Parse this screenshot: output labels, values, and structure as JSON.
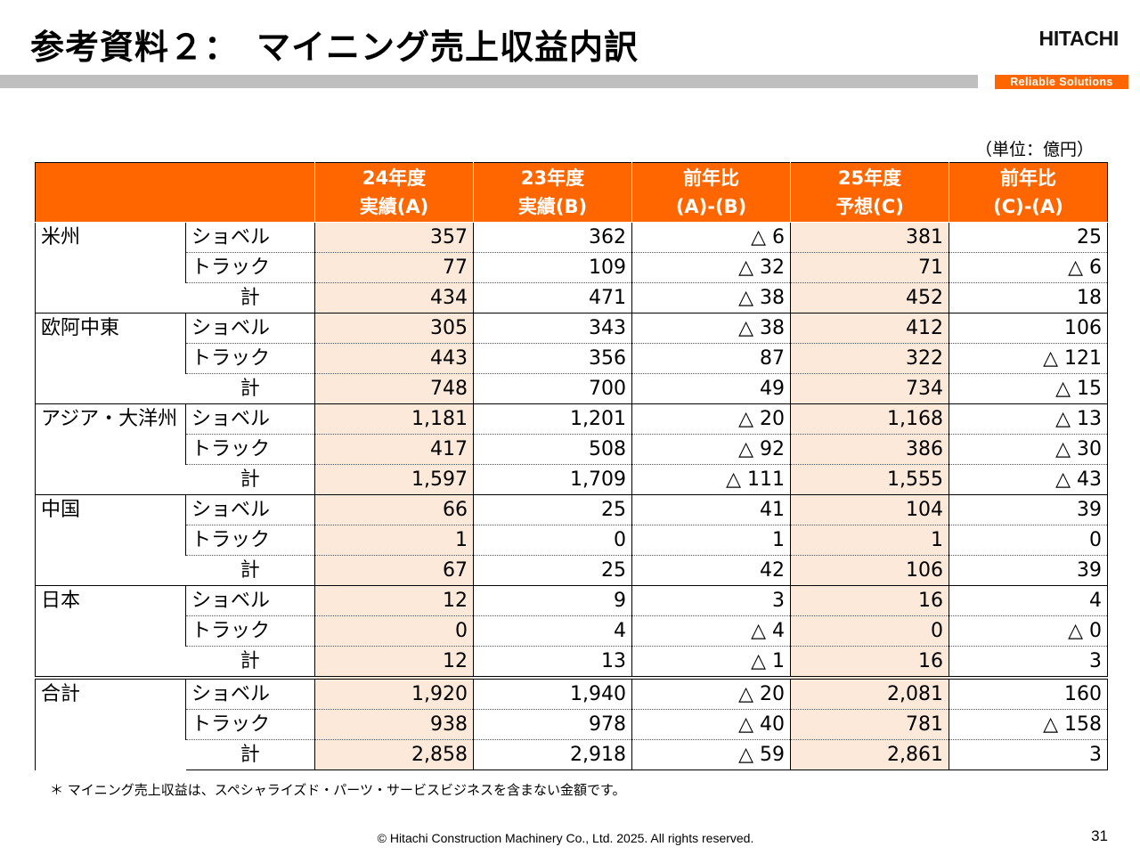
{
  "title": "参考資料２：　マイニング売上収益内訳",
  "logo": "HITACHI",
  "tagline": "Reliable Solutions",
  "unit": "（単位：億円）",
  "headers": [
    {
      "line1": "24年度",
      "line2": "実績(A)"
    },
    {
      "line1": "23年度",
      "line2": "実績(B)"
    },
    {
      "line1": "前年比",
      "line2": "(A)-(B)"
    },
    {
      "line1": "25年度",
      "line2": "予想(C)"
    },
    {
      "line1": "前年比",
      "line2": "(C)-(A)"
    }
  ],
  "row_labels": {
    "shovel": "ショベル",
    "truck": "トラック",
    "total": "計"
  },
  "regions": [
    {
      "name": "米州",
      "rows": [
        [
          "357",
          "362",
          "△ 6",
          "381",
          "25"
        ],
        [
          "77",
          "109",
          "△ 32",
          "71",
          "△ 6"
        ],
        [
          "434",
          "471",
          "△ 38",
          "452",
          "18"
        ]
      ]
    },
    {
      "name": "欧阿中東",
      "rows": [
        [
          "305",
          "343",
          "△ 38",
          "412",
          "106"
        ],
        [
          "443",
          "356",
          "87",
          "322",
          "△ 121"
        ],
        [
          "748",
          "700",
          "49",
          "734",
          "△ 15"
        ]
      ]
    },
    {
      "name": "アジア・大洋州",
      "rows": [
        [
          "1,181",
          "1,201",
          "△ 20",
          "1,168",
          "△ 13"
        ],
        [
          "417",
          "508",
          "△ 92",
          "386",
          "△ 30"
        ],
        [
          "1,597",
          "1,709",
          "△ 111",
          "1,555",
          "△ 43"
        ]
      ]
    },
    {
      "name": "中国",
      "rows": [
        [
          "66",
          "25",
          "41",
          "104",
          "39"
        ],
        [
          "1",
          "0",
          "1",
          "1",
          "0"
        ],
        [
          "67",
          "25",
          "42",
          "106",
          "39"
        ]
      ]
    },
    {
      "name": "日本",
      "rows": [
        [
          "12",
          "9",
          "3",
          "16",
          "4"
        ],
        [
          "0",
          "4",
          "△ 4",
          "0",
          "△ 0"
        ],
        [
          "12",
          "13",
          "△ 1",
          "16",
          "3"
        ]
      ]
    },
    {
      "name": "合計",
      "rows": [
        [
          "1,920",
          "1,940",
          "△ 20",
          "2,081",
          "160"
        ],
        [
          "938",
          "978",
          "△ 40",
          "781",
          "△ 158"
        ],
        [
          "2,858",
          "2,918",
          "△ 59",
          "2,861",
          "3"
        ]
      ]
    }
  ],
  "footnote": "＊ マイニング売上収益は、スペシャライズド・パーツ・サービスビジネスを含まない金額です。",
  "copyright": "© Hitachi Construction Machinery Co., Ltd. 2025. All rights reserved.",
  "page_number": "31"
}
